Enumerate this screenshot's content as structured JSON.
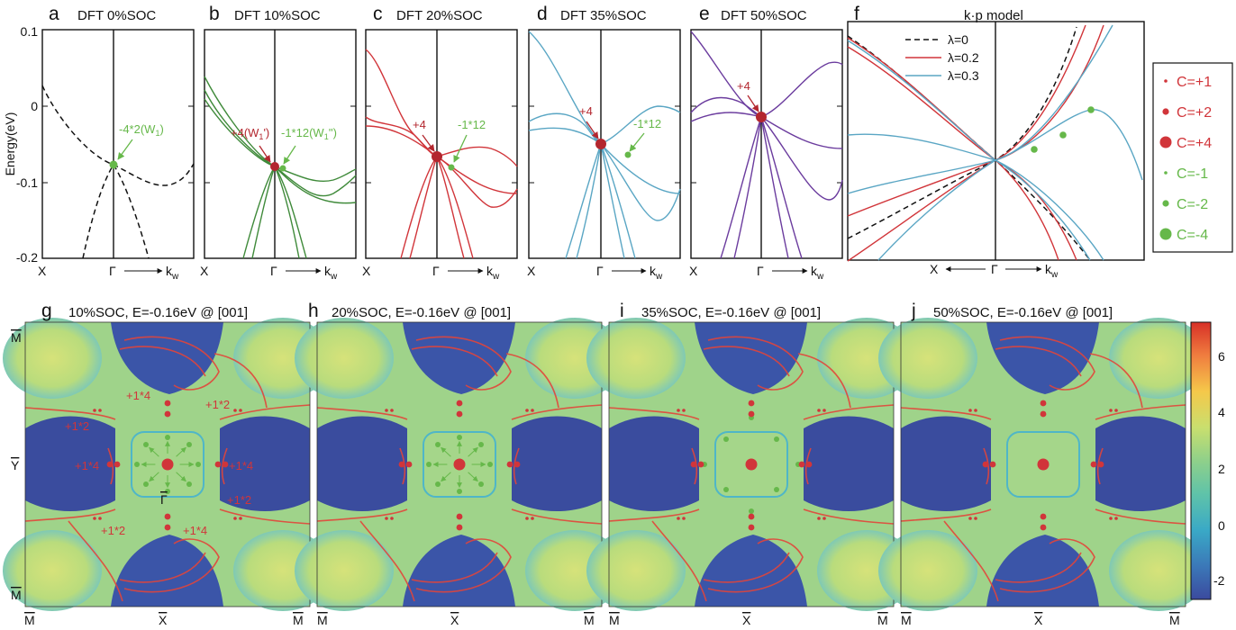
{
  "top_panels": [
    {
      "letter": "a",
      "title": "DFT 0%SOC",
      "kend": "k",
      "ksub": "w",
      "xlabel": "X",
      "gamma": "Γ"
    },
    {
      "letter": "b",
      "title": "DFT 10%SOC",
      "kend": "k",
      "ksub": "w",
      "xlabel": "X",
      "gamma": "Γ"
    },
    {
      "letter": "c",
      "title": "DFT 20%SOC",
      "kend": "k",
      "ksub": "w",
      "xlabel": "X",
      "gamma": "Γ"
    },
    {
      "letter": "d",
      "title": "DFT 35%SOC",
      "kend": "k",
      "ksub": "w",
      "xlabel": "X",
      "gamma": "Γ"
    },
    {
      "letter": "e",
      "title": "DFT 50%SOC",
      "kend": "k",
      "ksub": "w",
      "xlabel": "X",
      "gamma": "Γ"
    },
    {
      "letter": "f",
      "title": "k·p model",
      "kend": "k",
      "ksub": "w",
      "xlabel": "X",
      "gamma": "Γ"
    }
  ],
  "energy_axis": {
    "label": "Energy(eV)",
    "ticks": [
      "0.1",
      "0",
      "-0.1",
      "-0.2"
    ]
  },
  "annotations": {
    "a_green": "-4*2(W",
    "a_green_sub": "1",
    "a_green_end": ")",
    "b_red": "+4(W",
    "b_red_sub": "1",
    "b_red_end": "')",
    "b_green": "-1*12(W",
    "b_green_sub": "1",
    "b_green_end": "'')",
    "c_red": "+4",
    "c_green": "-1*12",
    "d_red": "+4",
    "d_green": "-1*12",
    "e_red": "+4"
  },
  "kp_legend": [
    {
      "label": "λ=0",
      "color": "#111111",
      "dash": "true"
    },
    {
      "label": "λ=0.2",
      "color": "#d1353a",
      "dash": "false"
    },
    {
      "label": "λ=0.3",
      "color": "#5aa6c4",
      "dash": "false"
    }
  ],
  "chern_legend": [
    {
      "label": "C=+1",
      "color": "#d1353a"
    },
    {
      "label": "C=+2",
      "color": "#d1353a"
    },
    {
      "label": "C=+4",
      "color": "#d1353a"
    },
    {
      "label": "C=-1",
      "color": "#66b84a"
    },
    {
      "label": "C=-2",
      "color": "#66b84a"
    },
    {
      "label": "C=-4",
      "color": "#66b84a"
    }
  ],
  "bottom_panels": [
    {
      "letter": "g",
      "title": "10%SOC, E=-0.16eV @ [001]"
    },
    {
      "letter": "h",
      "title": "20%SOC, E=-0.16eV @ [001]"
    },
    {
      "letter": "i",
      "title": "35%SOC, E=-0.16eV @ [001]"
    },
    {
      "letter": "j",
      "title": "50%SOC, E=-0.16eV @ [001]"
    }
  ],
  "bz_labels": {
    "M": "M",
    "Y": "Y",
    "X": "X",
    "G": "Γ"
  },
  "g_annotations": [
    "+1*4",
    "+1*2",
    "+1*2",
    "+1*4",
    "+1*4",
    "+1*2",
    "+1*2",
    "+1*4"
  ],
  "colorbar": {
    "ticks": [
      "6",
      "4",
      "2",
      "0",
      "-2"
    ],
    "colors": [
      "#d73027",
      "#f07d3f",
      "#f5c84a",
      "#c9df6e",
      "#8fd08a",
      "#5fc3a9",
      "#3aa9c6",
      "#3b78b8",
      "#3b4a9e"
    ]
  }
}
